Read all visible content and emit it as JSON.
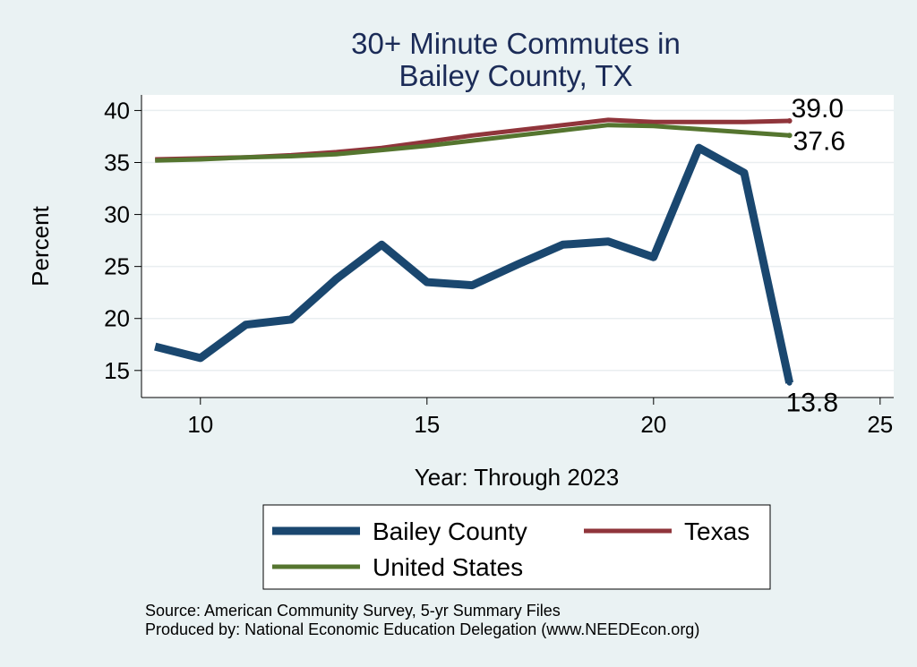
{
  "chart_data": {
    "type": "line",
    "title": [
      "30+ Minute Commutes in",
      "Bailey County, TX"
    ],
    "xlabel": "Year: Through 2023",
    "ylabel": "Percent",
    "xlim": [
      8.7,
      25.3
    ],
    "ylim": [
      12.4,
      41.5
    ],
    "xticks": [
      10,
      15,
      20,
      25
    ],
    "yticks": [
      15,
      20,
      25,
      30,
      35,
      40
    ],
    "grid": true,
    "legend_position": "bottom",
    "x": [
      9,
      10,
      11,
      12,
      13,
      14,
      15,
      16,
      17,
      18,
      19,
      20,
      21,
      22,
      23
    ],
    "series": [
      {
        "name": "Bailey County",
        "color": "#1a476f",
        "width": 9,
        "values": [
          17.3,
          16.2,
          19.4,
          19.9,
          23.8,
          27.1,
          23.5,
          23.2,
          25.2,
          27.1,
          27.4,
          25.9,
          36.4,
          34.0,
          13.8
        ],
        "end_label": "13.8"
      },
      {
        "name": "Texas",
        "color": "#90353b",
        "width": 5,
        "values": [
          35.3,
          35.4,
          35.5,
          35.7,
          36.0,
          36.4,
          37.0,
          37.6,
          38.1,
          38.6,
          39.1,
          38.9,
          38.9,
          38.9,
          39.0
        ],
        "end_label": "39.0"
      },
      {
        "name": "United States",
        "color": "#55752f",
        "width": 5,
        "values": [
          35.2,
          35.3,
          35.5,
          35.6,
          35.8,
          36.2,
          36.6,
          37.1,
          37.6,
          38.1,
          38.6,
          38.5,
          38.2,
          37.9,
          37.6
        ],
        "end_label": "37.6"
      }
    ],
    "notes": [
      "Source: American Community Survey, 5-yr Summary Files",
      "Produced by: National Economic Education Delegation (www.NEEDEcon.org)"
    ]
  }
}
